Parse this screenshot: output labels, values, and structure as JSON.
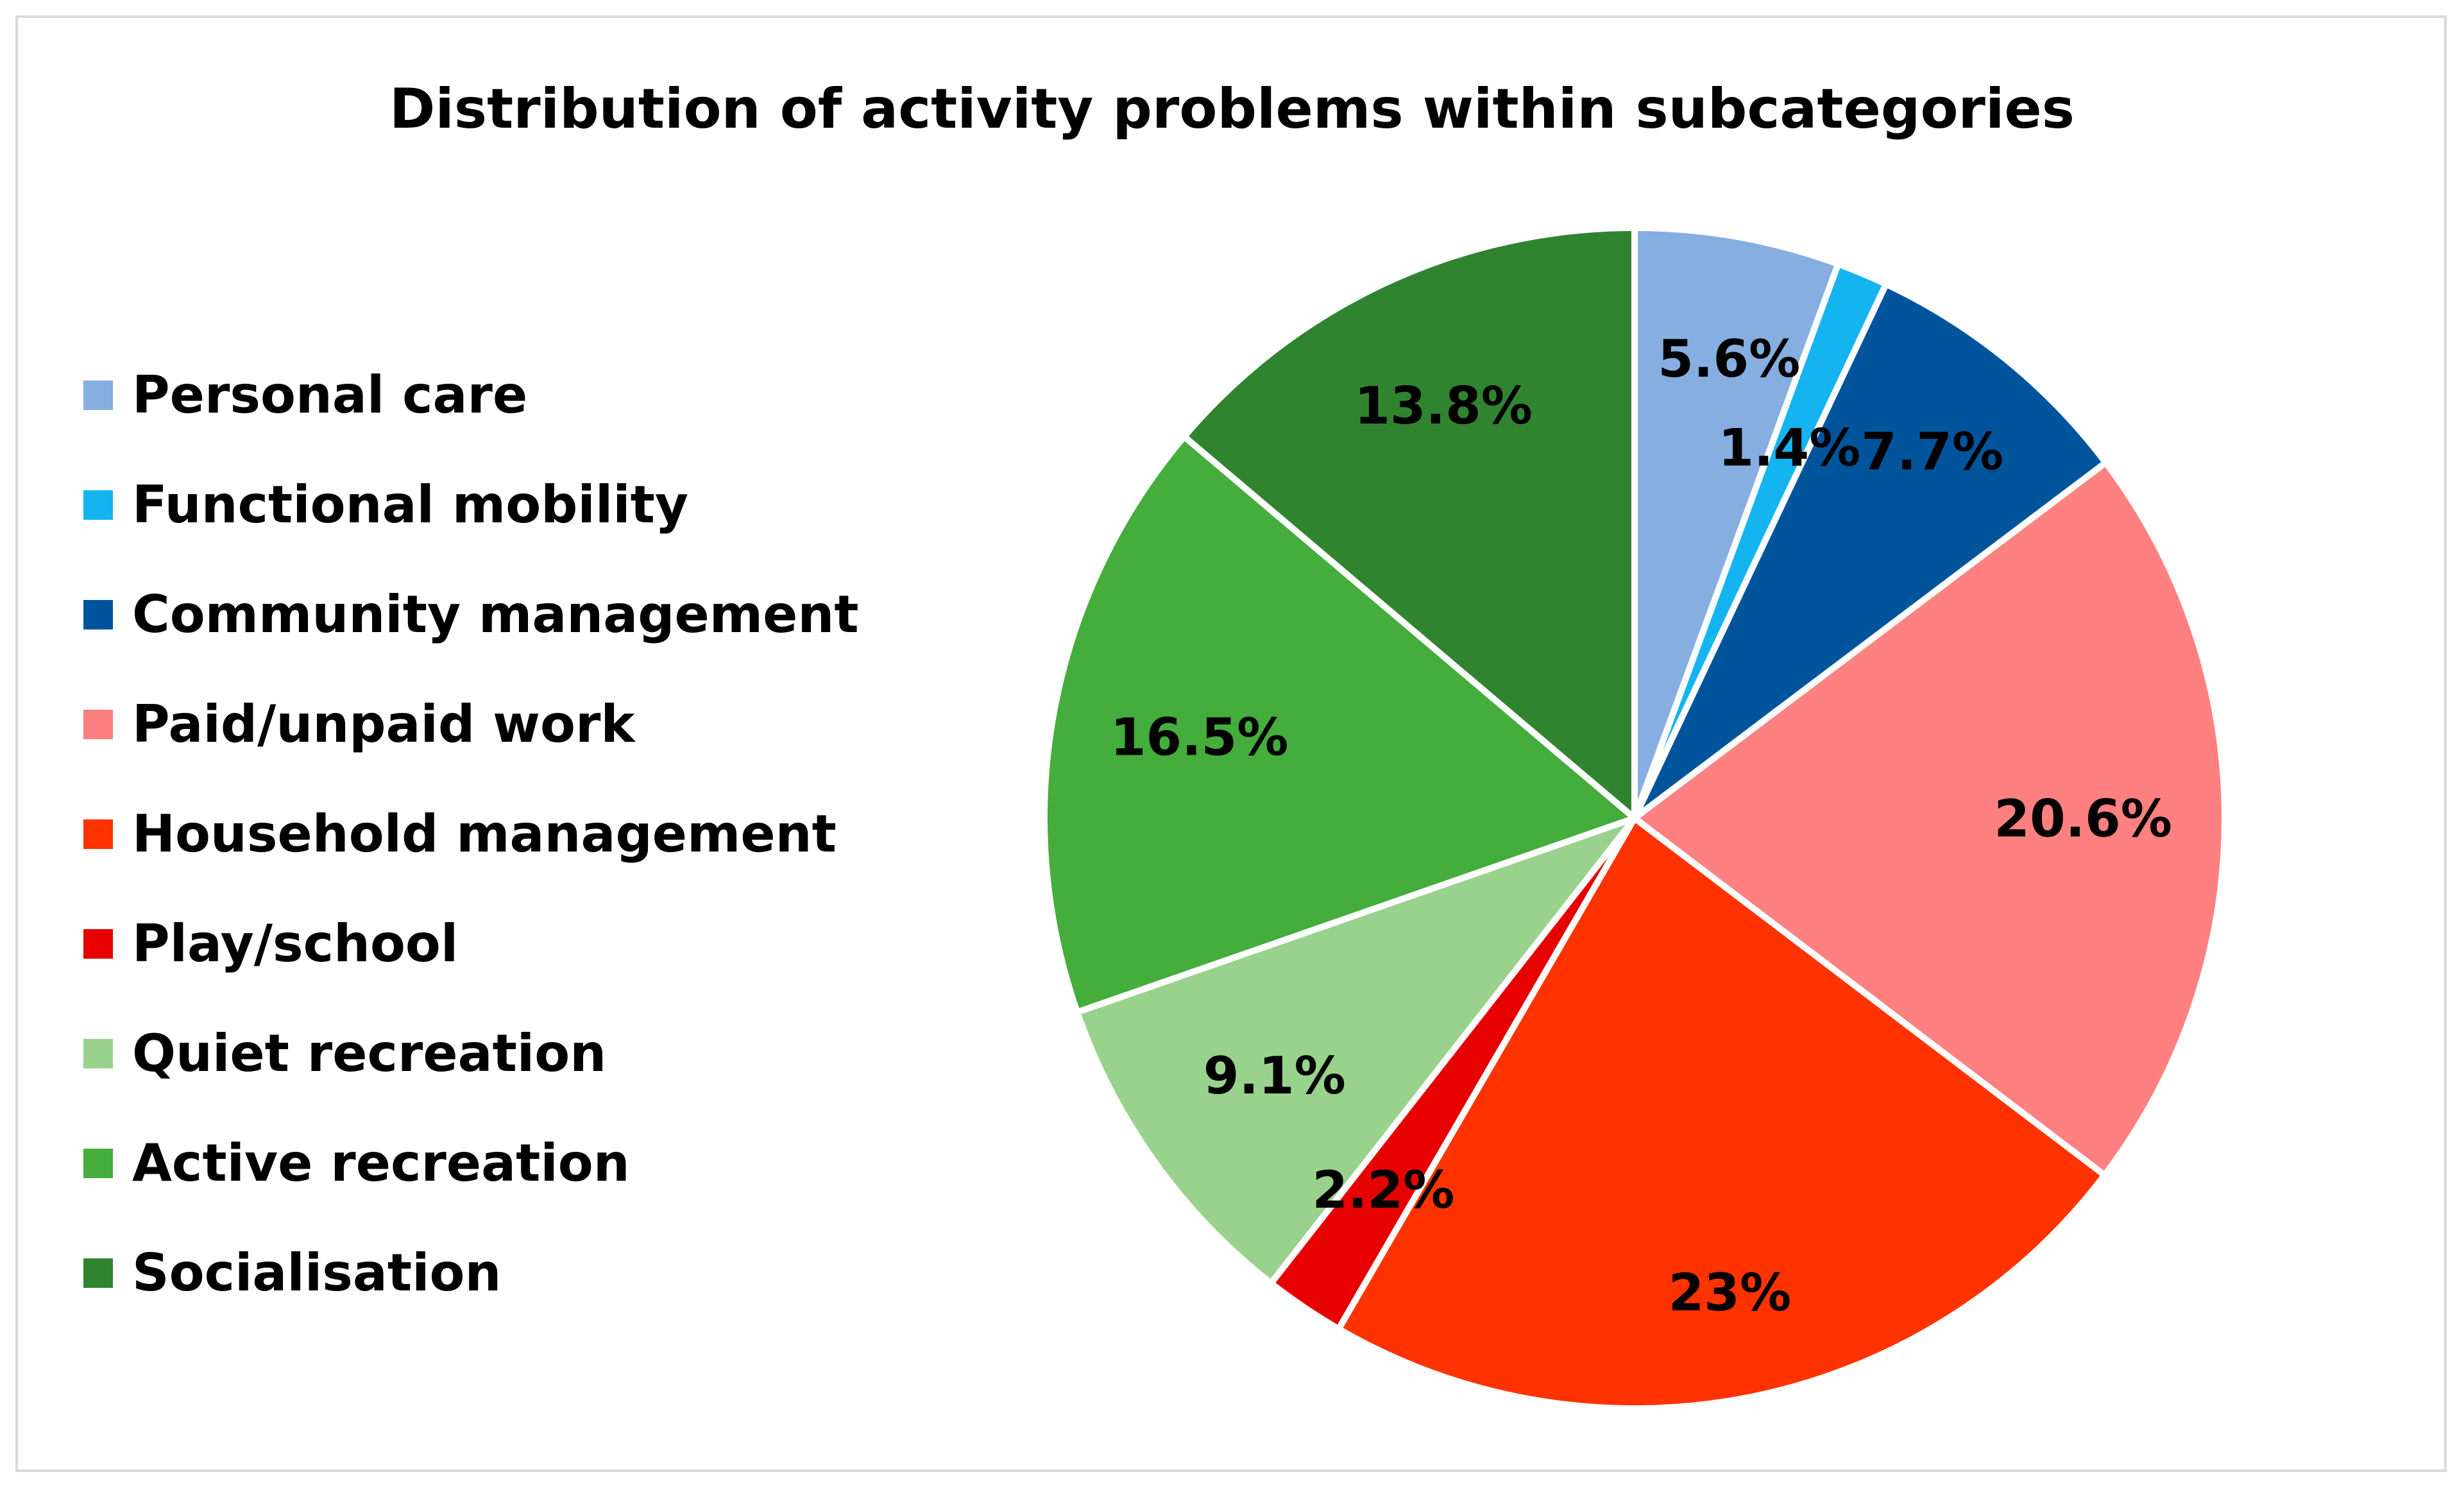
{
  "chart_data": {
    "type": "pie",
    "title": "Distribution of activity problems within subcategories",
    "legend_position": "left",
    "categories": [
      "Personal care",
      "Functional mobility",
      "Community management",
      "Paid/unpaid work",
      "Household management",
      "Play/school",
      "Quiet recreation",
      "Active recreation",
      "Socialisation"
    ],
    "values": [
      5.6,
      1.4,
      7.7,
      20.6,
      23,
      2.2,
      9.1,
      16.5,
      13.8
    ],
    "data_labels": [
      "5.6%",
      "1.4%",
      "7.7%",
      "20.6%",
      "23%",
      "2.2%",
      "9.1%",
      "16.5%",
      "13.8%"
    ],
    "colors": [
      "#86aee0",
      "#14b4f0",
      "#00549c",
      "#ff8080",
      "#ff3300",
      "#e60000",
      "#99d28c",
      "#44ad3c",
      "#308430"
    ]
  }
}
